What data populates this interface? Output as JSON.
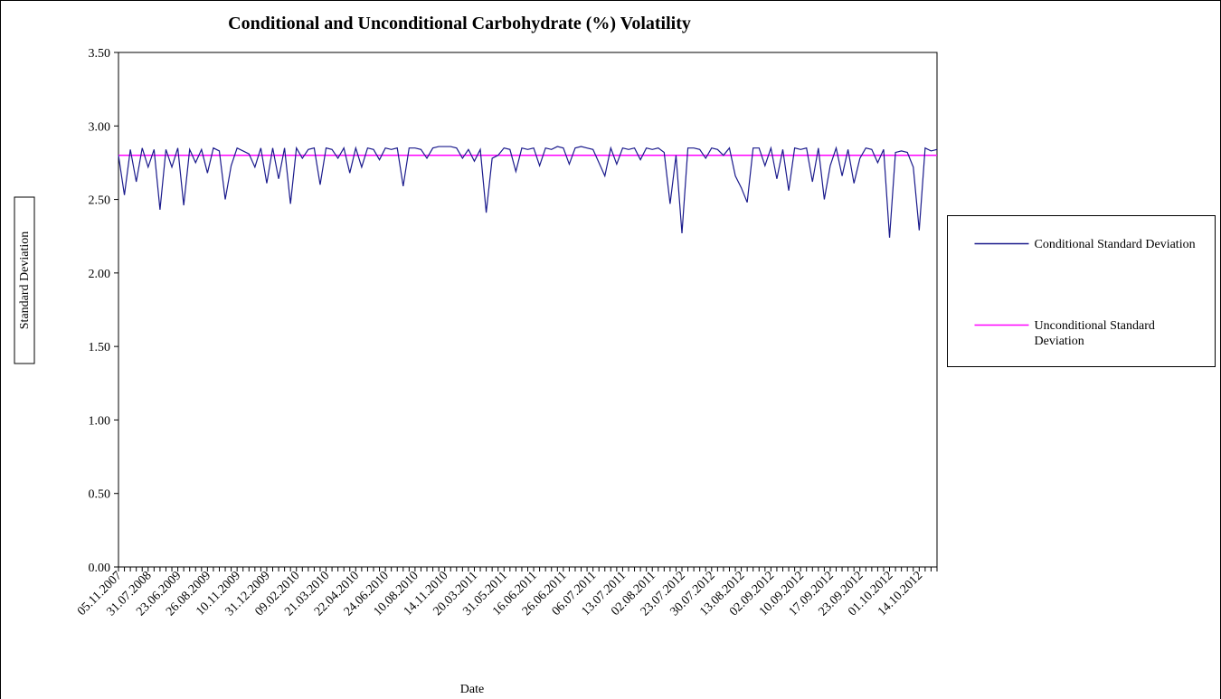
{
  "chart_data": {
    "type": "line",
    "title": "Conditional and Unconditional Carbohydrate (%) Volatility",
    "x_label": "Date",
    "y_label": "Standard Deviation",
    "categories": [
      "05.11.2007",
      null,
      null,
      null,
      null,
      "31.07.2008",
      null,
      null,
      null,
      null,
      "23.06.2009",
      null,
      null,
      null,
      null,
      "26.08.2009",
      null,
      null,
      null,
      null,
      "10.11.2009",
      null,
      null,
      null,
      null,
      "31.12.2009",
      null,
      null,
      null,
      null,
      "09.02.2010",
      null,
      null,
      null,
      null,
      "21.03.2010",
      null,
      null,
      null,
      null,
      "22.04.2010",
      null,
      null,
      null,
      null,
      "24.06.2010",
      null,
      null,
      null,
      null,
      "10.08.2010",
      null,
      null,
      null,
      null,
      "14.11.2010",
      null,
      null,
      null,
      null,
      "20.03.2011",
      null,
      null,
      null,
      null,
      "31.05.2011",
      null,
      null,
      null,
      null,
      "16.06.2011",
      null,
      null,
      null,
      null,
      "26.06.2011",
      null,
      null,
      null,
      null,
      "06.07.2011",
      null,
      null,
      null,
      null,
      "13.07.2011",
      null,
      null,
      null,
      null,
      "02.08.2011",
      null,
      null,
      null,
      null,
      "23.07.2012",
      null,
      null,
      null,
      null,
      "30.07.2012",
      null,
      null,
      null,
      null,
      "13.08.2012",
      null,
      null,
      null,
      null,
      "02.09.2012",
      null,
      null,
      null,
      null,
      "10.09.2012",
      null,
      null,
      null,
      null,
      "17.09.2012",
      null,
      null,
      null,
      null,
      "23.09.2012",
      null,
      null,
      null,
      null,
      "01.10.2012",
      null,
      null,
      null,
      null,
      "14.10.2012",
      null,
      null,
      null
    ],
    "series": [
      {
        "name": "Conditional Standard Deviation",
        "color": "#1a1a8c",
        "values": [
          2.8,
          2.53,
          2.84,
          2.62,
          2.85,
          2.72,
          2.84,
          2.43,
          2.84,
          2.72,
          2.85,
          2.46,
          2.84,
          2.75,
          2.84,
          2.68,
          2.85,
          2.83,
          2.5,
          2.73,
          2.85,
          2.83,
          2.81,
          2.72,
          2.85,
          2.61,
          2.85,
          2.64,
          2.85,
          2.47,
          2.85,
          2.78,
          2.84,
          2.85,
          2.6,
          2.85,
          2.84,
          2.78,
          2.85,
          2.68,
          2.85,
          2.72,
          2.85,
          2.84,
          2.77,
          2.85,
          2.84,
          2.85,
          2.59,
          2.85,
          2.85,
          2.84,
          2.78,
          2.85,
          2.86,
          2.86,
          2.86,
          2.85,
          2.78,
          2.84,
          2.76,
          2.84,
          2.41,
          2.78,
          2.8,
          2.85,
          2.84,
          2.69,
          2.85,
          2.84,
          2.85,
          2.73,
          2.85,
          2.84,
          2.86,
          2.85,
          2.74,
          2.85,
          2.86,
          2.85,
          2.84,
          2.75,
          2.66,
          2.85,
          2.74,
          2.85,
          2.84,
          2.85,
          2.77,
          2.85,
          2.84,
          2.85,
          2.82,
          2.47,
          2.8,
          2.27,
          2.85,
          2.85,
          2.84,
          2.78,
          2.85,
          2.84,
          2.8,
          2.85,
          2.66,
          2.58,
          2.48,
          2.85,
          2.85,
          2.73,
          2.85,
          2.64,
          2.84,
          2.56,
          2.85,
          2.84,
          2.85,
          2.62,
          2.85,
          2.5,
          2.73,
          2.85,
          2.66,
          2.84,
          2.61,
          2.78,
          2.85,
          2.84,
          2.75,
          2.84,
          2.24,
          2.82,
          2.83,
          2.82,
          2.72,
          2.29,
          2.85,
          2.83,
          2.84
        ]
      },
      {
        "name": "Unconditional Standard Deviation",
        "color": "#ff00ff",
        "values": [
          2.8,
          2.8,
          2.8,
          2.8,
          2.8,
          2.8,
          2.8,
          2.8,
          2.8,
          2.8,
          2.8,
          2.8,
          2.8,
          2.8,
          2.8,
          2.8,
          2.8,
          2.8,
          2.8,
          2.8,
          2.8,
          2.8,
          2.8,
          2.8,
          2.8,
          2.8,
          2.8,
          2.8,
          2.8,
          2.8,
          2.8,
          2.8,
          2.8,
          2.8,
          2.8,
          2.8,
          2.8,
          2.8,
          2.8,
          2.8,
          2.8,
          2.8,
          2.8,
          2.8,
          2.8,
          2.8,
          2.8,
          2.8,
          2.8,
          2.8,
          2.8,
          2.8,
          2.8,
          2.8,
          2.8,
          2.8,
          2.8,
          2.8,
          2.8,
          2.8,
          2.8,
          2.8,
          2.8,
          2.8,
          2.8,
          2.8,
          2.8,
          2.8,
          2.8,
          2.8,
          2.8,
          2.8,
          2.8,
          2.8,
          2.8,
          2.8,
          2.8,
          2.8,
          2.8,
          2.8,
          2.8,
          2.8,
          2.8,
          2.8,
          2.8,
          2.8,
          2.8,
          2.8,
          2.8,
          2.8,
          2.8,
          2.8,
          2.8,
          2.8,
          2.8,
          2.8,
          2.8,
          2.8,
          2.8,
          2.8,
          2.8,
          2.8,
          2.8,
          2.8,
          2.8,
          2.8,
          2.8,
          2.8,
          2.8,
          2.8,
          2.8,
          2.8,
          2.8,
          2.8,
          2.8,
          2.8,
          2.8,
          2.8,
          2.8,
          2.8,
          2.8,
          2.8,
          2.8,
          2.8,
          2.8,
          2.8,
          2.8,
          2.8,
          2.8,
          2.8,
          2.8,
          2.8,
          2.8,
          2.8,
          2.8,
          2.8,
          2.8,
          2.8,
          2.8
        ]
      }
    ],
    "ylim": [
      0,
      3.5
    ],
    "yticks": [
      {
        "value": 0,
        "label": "0.00"
      },
      {
        "value": 0.5,
        "label": "0.50"
      },
      {
        "value": 1,
        "label": "1.00"
      },
      {
        "value": 1.5,
        "label": "1.50"
      },
      {
        "value": 2,
        "label": "2.00"
      },
      {
        "value": 2.5,
        "label": "2.50"
      },
      {
        "value": 3,
        "label": "3.00"
      },
      {
        "value": 3.5,
        "label": "3.50"
      }
    ],
    "legend": "right"
  }
}
